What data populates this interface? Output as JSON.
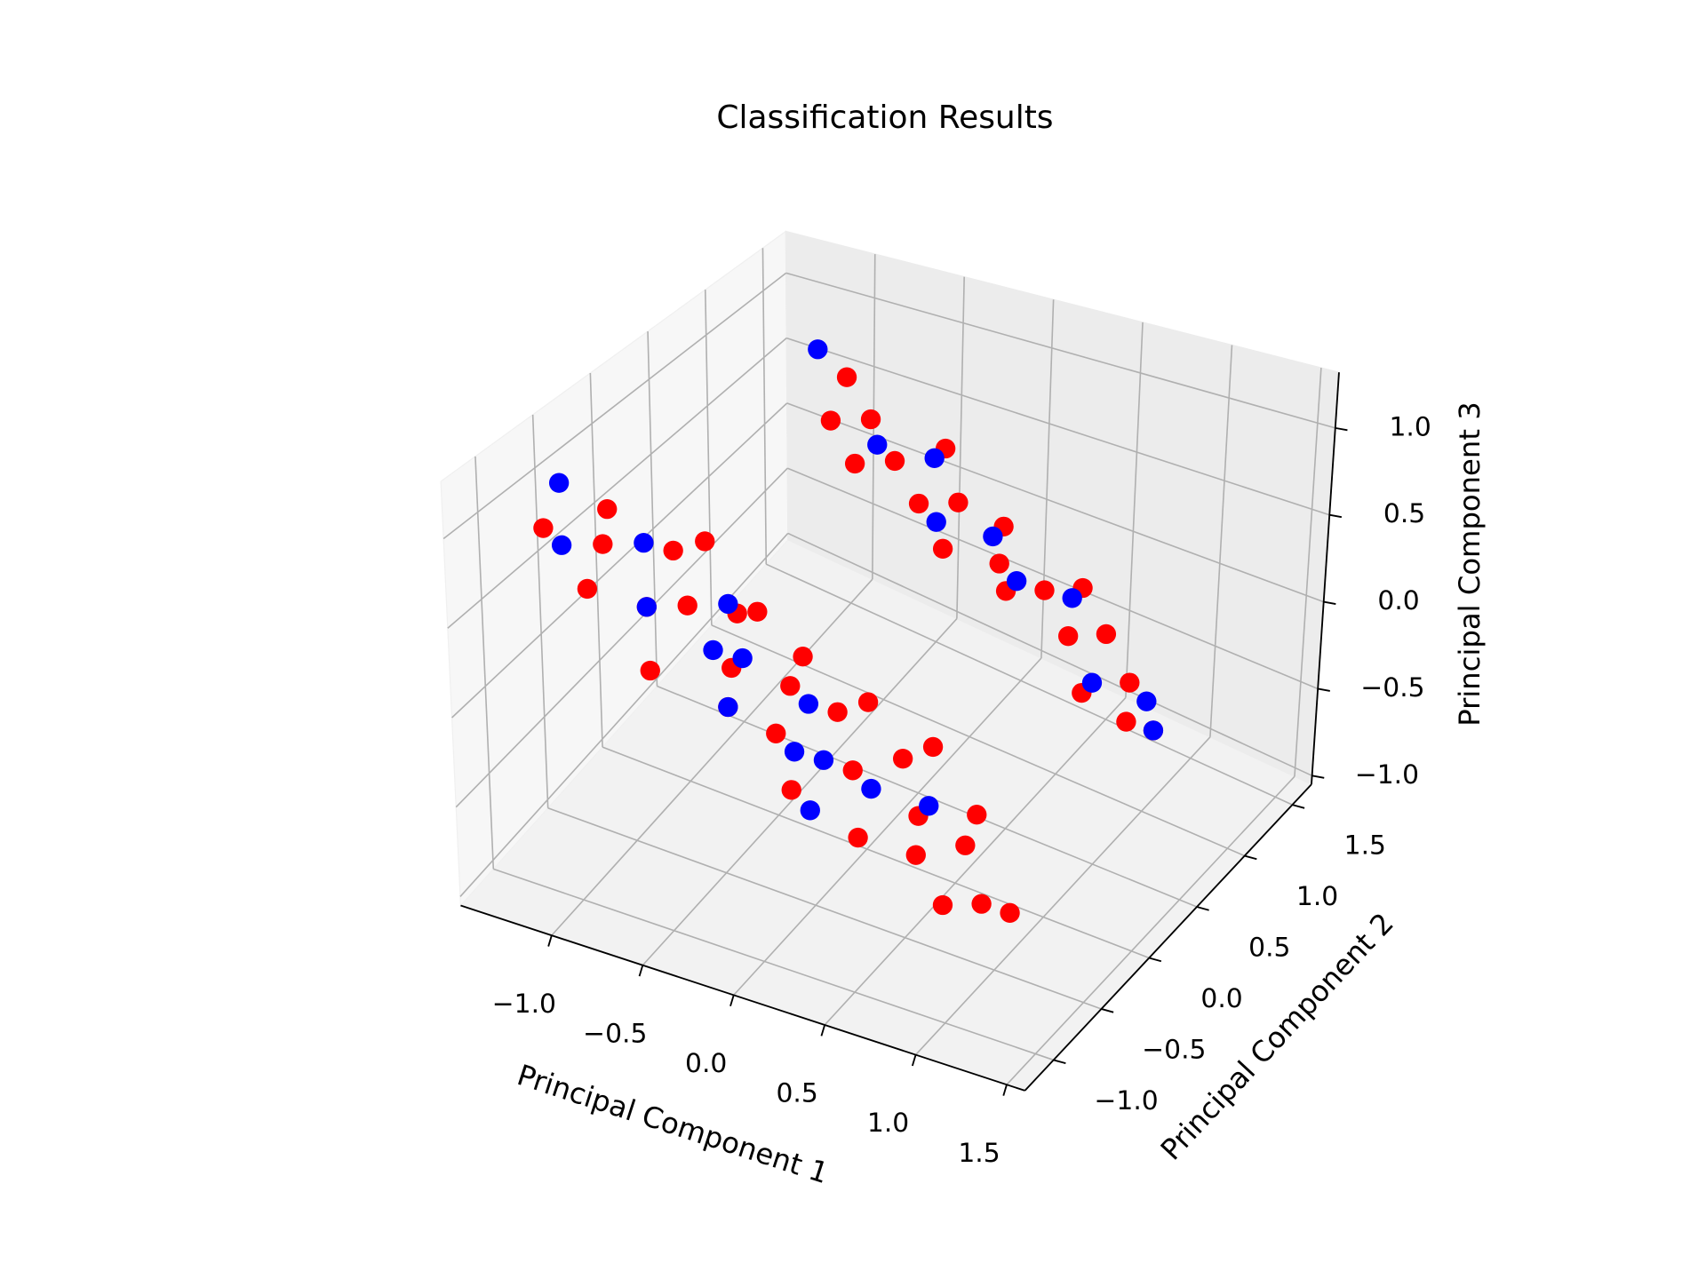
{
  "chart_data": {
    "type": "scatter3d",
    "title": "Classification Results",
    "xlabel": "Principal Component 1",
    "ylabel": "Principal Component 2",
    "zlabel": "Principal Component 3",
    "xlim": [
      -1.5,
      1.6
    ],
    "ylim": [
      -1.3,
      1.7
    ],
    "zlim": [
      -1.05,
      1.32
    ],
    "xticks": [
      {
        "value": -1.0,
        "label": "−1.0"
      },
      {
        "value": -0.5,
        "label": "−0.5"
      },
      {
        "value": 0.0,
        "label": "0.0"
      },
      {
        "value": 0.5,
        "label": "0.5"
      },
      {
        "value": 1.0,
        "label": "1.0"
      },
      {
        "value": 1.5,
        "label": "1.5"
      }
    ],
    "yticks": [
      {
        "value": -1.0,
        "label": "−1.0"
      },
      {
        "value": -0.5,
        "label": "−0.5"
      },
      {
        "value": 0.0,
        "label": "0.0"
      },
      {
        "value": 0.5,
        "label": "0.5"
      },
      {
        "value": 1.0,
        "label": "1.0"
      },
      {
        "value": 1.5,
        "label": "1.5"
      }
    ],
    "zticks": [
      {
        "value": -1.0,
        "label": "−1.0"
      },
      {
        "value": -0.5,
        "label": "−0.5"
      },
      {
        "value": 0.0,
        "label": "0.0"
      },
      {
        "value": 0.5,
        "label": "0.5"
      },
      {
        "value": 1.0,
        "label": "1.0"
      }
    ],
    "grid": true,
    "series": [
      {
        "color": "#ff0000",
        "x": [
          -1.2,
          -1.1,
          -1.0,
          -0.9,
          -0.8,
          -0.7,
          -0.6,
          -0.5,
          -0.4,
          -0.3,
          -0.2,
          -0.1,
          0.0,
          0.1,
          0.2,
          0.3,
          0.4,
          0.5,
          0.6,
          0.7,
          0.8,
          0.9,
          1.0,
          1.1,
          -0.75,
          -0.45,
          -0.15,
          0.15,
          0.45,
          0.75,
          -0.9,
          -0.8,
          -0.7,
          -0.6,
          -0.5,
          -0.4,
          -0.3,
          -0.2,
          -0.1,
          0.0,
          0.1,
          0.2,
          0.3,
          0.4,
          0.5,
          0.6,
          0.7,
          0.8,
          0.9,
          1.0
        ],
        "y": [
          -0.9,
          -0.5,
          -0.7,
          -1.0,
          -0.4,
          -0.8,
          -0.6,
          -1.1,
          -0.3,
          -0.7,
          -0.9,
          -0.5,
          -0.8,
          -0.4,
          -1.0,
          -0.6,
          -0.3,
          -0.9,
          -0.5,
          -0.7,
          -0.4,
          -0.8,
          -0.6,
          -0.5,
          -0.2,
          -0.4,
          -0.3,
          -0.2,
          -0.1,
          -0.2,
          1.3,
          1.0,
          1.2,
          0.9,
          1.1,
          1.4,
          1.0,
          1.2,
          0.9,
          1.3,
          1.1,
          1.0,
          1.2,
          1.4,
          1.1,
          1.3,
          0.9,
          1.2,
          1.0,
          1.1
        ],
        "z": [
          0.94,
          0.87,
          0.8,
          0.73,
          0.66,
          0.58,
          0.51,
          0.44,
          0.37,
          0.3,
          0.22,
          0.15,
          0.08,
          0.01,
          -0.06,
          -0.14,
          -0.21,
          -0.28,
          -0.35,
          -0.42,
          -0.5,
          -0.57,
          -0.64,
          -0.71,
          0.62,
          0.4,
          0.19,
          -0.03,
          -0.24,
          -0.46,
          0.73,
          0.66,
          0.58,
          0.51,
          0.44,
          0.37,
          0.3,
          0.22,
          0.15,
          0.08,
          0.01,
          -0.06,
          -0.14,
          -0.21,
          -0.28,
          -0.35,
          -0.42,
          -0.5,
          -0.57,
          -0.64
        ]
      },
      {
        "color": "#0000ff",
        "x": [
          -1.3,
          -1.1,
          -0.9,
          -0.7,
          -0.5,
          -0.4,
          -0.3,
          -0.2,
          0.0,
          0.1,
          0.2,
          0.4,
          0.6,
          0.3,
          -1.0,
          -0.6,
          -0.4,
          -0.2,
          0.0,
          0.2,
          0.4,
          0.7,
          0.9,
          1.0
        ],
        "y": [
          -0.6,
          -0.9,
          -0.5,
          -0.8,
          -0.4,
          -0.7,
          -0.6,
          -0.9,
          -0.5,
          -0.8,
          -0.7,
          -0.6,
          -0.4,
          -1.0,
          1.2,
          1.1,
          1.3,
          1.0,
          1.2,
          1.1,
          1.3,
          1.0,
          1.2,
          1.1
        ],
        "z": [
          1.02,
          0.87,
          0.73,
          0.58,
          0.44,
          0.37,
          0.3,
          0.22,
          0.08,
          0.01,
          -0.06,
          -0.21,
          -0.35,
          -0.14,
          0.95,
          0.51,
          0.37,
          0.22,
          0.08,
          -0.06,
          -0.21,
          -0.42,
          -0.57,
          -0.64
        ]
      }
    ]
  }
}
